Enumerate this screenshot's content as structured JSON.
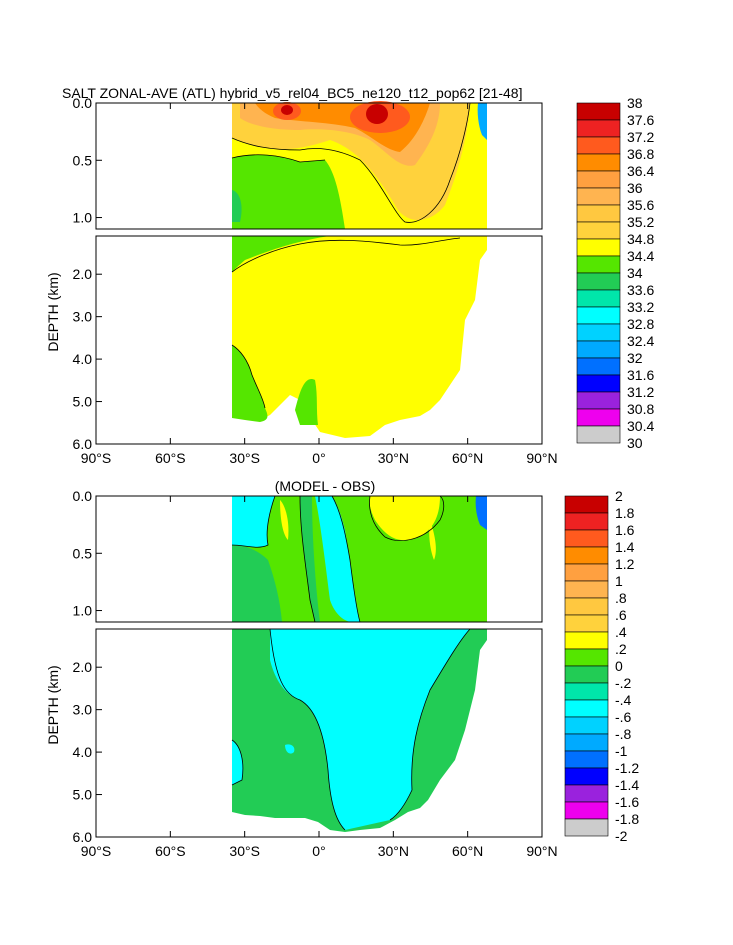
{
  "chart_data": [
    {
      "type": "heatmap",
      "title": "SALT ZONAL-AVE (ATL) hybrid_v5_rel04_BC5_ne120_t12_pop62 [21-48]",
      "ylabel": "DEPTH (km)",
      "xlabel": "",
      "xlim": [
        -90,
        90
      ],
      "ylim": [
        6.0,
        0.0
      ],
      "x_ticks": [
        "90°S",
        "60°S",
        "30°S",
        "0°",
        "30°N",
        "60°N",
        "90°N"
      ],
      "y_ticks_upper": [
        "0.0",
        "0.5",
        "1.0"
      ],
      "y_ticks_lower": [
        "2.0",
        "3.0",
        "4.0",
        "5.0",
        "6.0"
      ],
      "colorbar_levels": [
        "38",
        "37.6",
        "37.2",
        "36.8",
        "36.4",
        "36",
        "35.6",
        "35.2",
        "34.8",
        "34.4",
        "34",
        "33.6",
        "33.2",
        "32.8",
        "32.4",
        "32",
        "31.6",
        "31.2",
        "30.8",
        "30.4",
        "30"
      ],
      "colorbar_colors": [
        "#c80000",
        "#ee2222",
        "#ff5a1e",
        "#ff8c00",
        "#ffa040",
        "#ffb450",
        "#ffc840",
        "#ffd23c",
        "#ffff00",
        "#55e600",
        "#22cc55",
        "#00e6aa",
        "#00ffff",
        "#00d2ff",
        "#00aaff",
        "#0070ff",
        "#0000ff",
        "#9a22dd",
        "#ee00ee",
        "#cccccc",
        "#808080"
      ],
      "ocean_extent_lat": [
        -35,
        68
      ],
      "background_value_range": "34.8–35.2"
    },
    {
      "type": "heatmap",
      "title": "(MODEL - OBS)",
      "ylabel": "DEPTH (km)",
      "xlabel": "",
      "xlim": [
        -90,
        90
      ],
      "ylim": [
        6.0,
        0.0
      ],
      "x_ticks": [
        "90°S",
        "60°S",
        "30°S",
        "0°",
        "30°N",
        "60°N",
        "90°N"
      ],
      "y_ticks_upper": [
        "0.0",
        "0.5",
        "1.0"
      ],
      "y_ticks_lower": [
        "2.0",
        "3.0",
        "4.0",
        "5.0",
        "6.0"
      ],
      "colorbar_levels": [
        "2",
        "1.8",
        "1.6",
        "1.4",
        "1.2",
        "1",
        ".8",
        ".6",
        ".4",
        ".2",
        "0",
        "-.2",
        "-.4",
        "-.6",
        "-.8",
        "-1",
        "-1.2",
        "-1.4",
        "-1.6",
        "-1.8",
        "-2"
      ],
      "colorbar_colors": [
        "#c80000",
        "#ee2222",
        "#ff5a1e",
        "#ff8c00",
        "#ffa040",
        "#ffb450",
        "#ffc840",
        "#ffd23c",
        "#ffff00",
        "#55e600",
        "#22cc55",
        "#00e6aa",
        "#00ffff",
        "#00d2ff",
        "#00aaff",
        "#0070ff",
        "#0000ff",
        "#9a22dd",
        "#ee00ee",
        "#cccccc",
        "#808080"
      ],
      "ocean_extent_lat": [
        -35,
        68
      ],
      "background_value_range": "0–0.2"
    }
  ]
}
